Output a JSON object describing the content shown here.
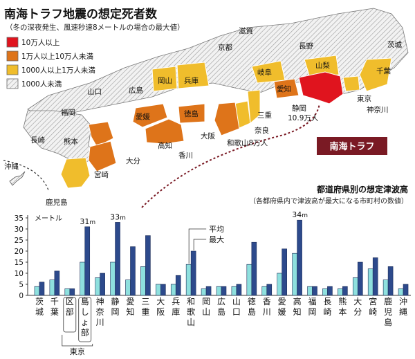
{
  "map": {
    "title": "南海トラフ地震の想定死者数",
    "subtitle": "（冬の深夜発生、風速秒速8メートルの場合の最大値）",
    "legend": [
      {
        "label": "10万人以上",
        "color": "#e0141e"
      },
      {
        "label": "1万人以上10万人未満",
        "color": "#de741a"
      },
      {
        "label": "1000人以上1万人未満",
        "color": "#f0bd2c"
      },
      {
        "label": "1000人未満",
        "color": "#e6e6e6"
      }
    ],
    "labels": {
      "shiga": "滋賀",
      "kyoto": "京都",
      "nagano": "長野",
      "ibaraki": "茨城",
      "gifu": "岐阜",
      "yamanashi": "山梨",
      "chiba": "千葉",
      "okayama": "岡山",
      "hyogo": "兵庫",
      "aichi": "愛知",
      "yamaguchi": "山口",
      "hiroshima": "広島",
      "tokyo": "東京",
      "kanagawa": "神奈川",
      "shizuoka": "静岡",
      "shizuoka_deaths": "10.9万人",
      "fukuoka": "福岡",
      "ehime": "愛媛",
      "tokushima": "徳島",
      "mie": "三重",
      "nara": "奈良",
      "osaka": "大阪",
      "wakayama": "和歌山8万人",
      "nagasaki": "長崎",
      "kumamoto": "熊本",
      "kochi": "高知",
      "kagawa": "香川",
      "oita": "大分",
      "okinawa": "沖縄",
      "miyazaki": "宮崎",
      "kagoshima": "鹿児島"
    },
    "nankai_label": "南海トラフ"
  },
  "chart_data": {
    "type": "bar",
    "title": "都道府県別の想定津波高",
    "subtitle": "（各都府県内で津波高が最大になる市町村の数値）",
    "ylabel": "メートル",
    "ylim": [
      0,
      35
    ],
    "yticks": [
      0,
      5,
      10,
      15,
      20,
      25,
      30,
      35
    ],
    "categories": [
      "茨城",
      "千葉",
      "区部",
      "島しょ部",
      "神奈川",
      "静岡",
      "愛知",
      "三重",
      "大阪",
      "兵庫",
      "和歌山",
      "岡山",
      "広島",
      "山口",
      "徳島",
      "香川",
      "愛媛",
      "高知",
      "福岡",
      "長崎",
      "熊本",
      "大分",
      "宮崎",
      "鹿児島",
      "沖縄"
    ],
    "series": [
      {
        "name": "平均",
        "color": "#8ee0de",
        "values": [
          4,
          7,
          3,
          15,
          8,
          15,
          7,
          13,
          5,
          5,
          14,
          3,
          4,
          4,
          14,
          4,
          10,
          19,
          4,
          3,
          3,
          8,
          12,
          7,
          3
        ]
      },
      {
        "name": "最大",
        "color": "#2d4a8c",
        "values": [
          6,
          11,
          3,
          31,
          10,
          33,
          22,
          27,
          5,
          9,
          20,
          4,
          4,
          5,
          24,
          5,
          21,
          34,
          4,
          4,
          4,
          15,
          17,
          13,
          5
        ]
      }
    ],
    "data_labels": [
      {
        "category": "島しょ部",
        "text": "31"
      },
      {
        "category": "静岡",
        "text": "33"
      },
      {
        "category": "高知",
        "text": "34"
      }
    ],
    "unit_suffix": "m",
    "tokyo_group_label": "東京",
    "grid": false
  }
}
